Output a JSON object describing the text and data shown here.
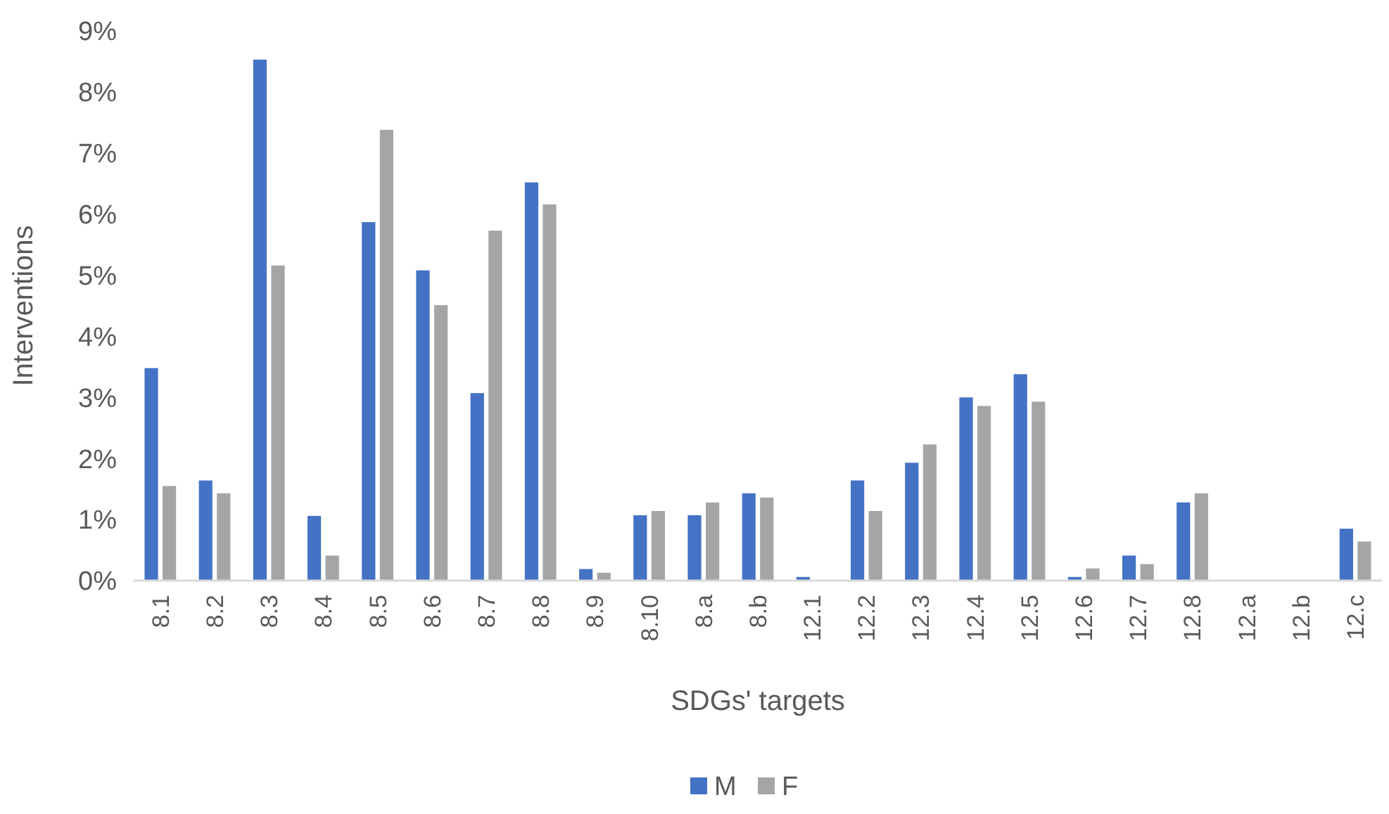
{
  "chart_data": {
    "type": "bar",
    "xlabel": "SDGs' targets",
    "ylabel": "Interventions",
    "categories": [
      "8.1",
      "8.2",
      "8.3",
      "8.4",
      "8.5",
      "8.6",
      "8.7",
      "8.8",
      "8.9",
      "8.10",
      "8.a",
      "8.b",
      "12.1",
      "12.2",
      "12.3",
      "12.4",
      "12.5",
      "12.6",
      "12.7",
      "12.8",
      "12.a",
      "12.b",
      "12.c"
    ],
    "series": [
      {
        "name": "M",
        "color": "#4472c4",
        "values": [
          3.48,
          1.64,
          8.53,
          1.06,
          5.87,
          5.08,
          3.07,
          6.52,
          0.19,
          1.07,
          1.07,
          1.43,
          0.06,
          1.64,
          1.93,
          3.0,
          3.38,
          0.06,
          0.41,
          1.28,
          0,
          0,
          0.85
        ]
      },
      {
        "name": "F",
        "color": "#a5a5a5",
        "values": [
          1.55,
          1.43,
          5.16,
          0.41,
          7.38,
          4.51,
          5.73,
          6.16,
          0.13,
          1.14,
          1.28,
          1.36,
          0,
          1.14,
          2.23,
          2.86,
          2.93,
          0.2,
          0.27,
          1.43,
          0,
          0,
          0.64
        ]
      }
    ],
    "ylim": [
      0,
      9
    ],
    "yticks": [
      {
        "value": 0,
        "label": "0%"
      },
      {
        "value": 1,
        "label": "1%"
      },
      {
        "value": 2,
        "label": "2%"
      },
      {
        "value": 3,
        "label": "3%"
      },
      {
        "value": 4,
        "label": "4%"
      },
      {
        "value": 5,
        "label": "5%"
      },
      {
        "value": 6,
        "label": "6%"
      },
      {
        "value": 7,
        "label": "7%"
      },
      {
        "value": 8,
        "label": "8%"
      },
      {
        "value": 9,
        "label": "9%"
      }
    ],
    "grid": false,
    "legend": "bottom"
  }
}
